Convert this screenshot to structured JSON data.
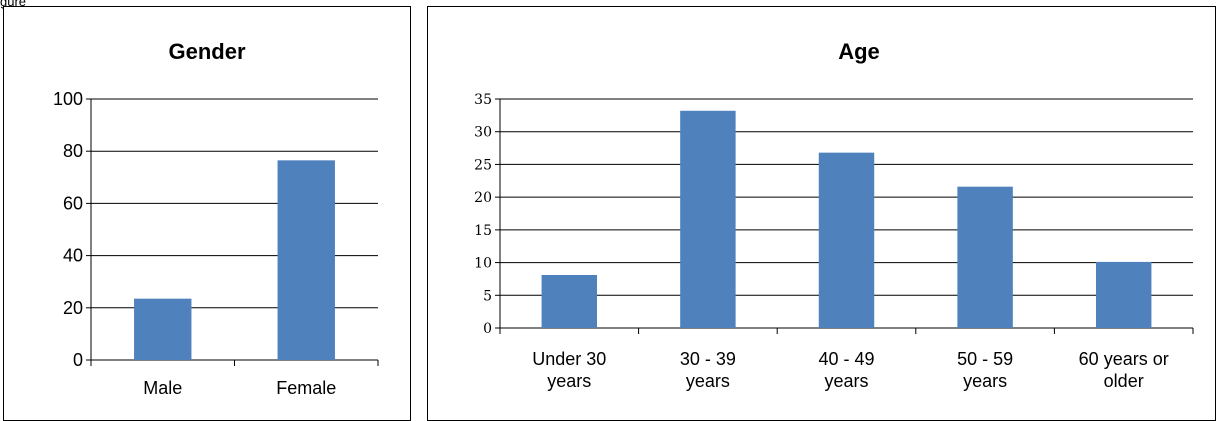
{
  "page": {
    "caption": "gure"
  },
  "chart_data": [
    {
      "type": "bar",
      "title": "Gender",
      "categories": [
        "Male",
        "Female"
      ],
      "values": [
        23.5,
        76.5
      ],
      "ylim": [
        0,
        100
      ],
      "yticks": [
        "0",
        "20",
        "40",
        "60",
        "80",
        "100"
      ],
      "grid": true,
      "bar_color": "#4f81bd"
    },
    {
      "type": "bar",
      "title": "Age",
      "categories": [
        [
          "Under 30",
          "years"
        ],
        [
          "30 - 39",
          "years"
        ],
        [
          "40 - 49",
          "years"
        ],
        [
          "50 - 59",
          "years"
        ],
        [
          "60 years or",
          "older"
        ]
      ],
      "values": [
        8.1,
        33.2,
        26.8,
        21.6,
        10.1
      ],
      "ylim": [
        0,
        35
      ],
      "yticks": [
        "0",
        "5",
        "10",
        "15",
        "20",
        "25",
        "30",
        "35"
      ],
      "grid": true,
      "bar_color": "#4f81bd"
    }
  ]
}
